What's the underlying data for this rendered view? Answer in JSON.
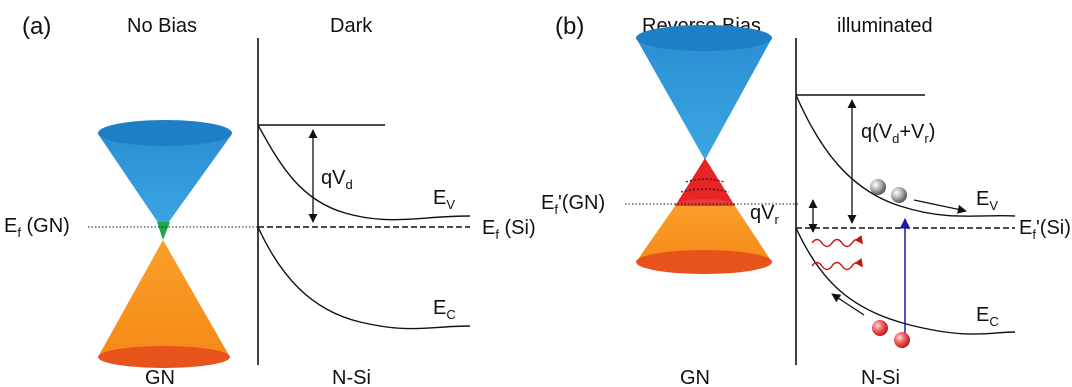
{
  "panel_a": {
    "tag": "(a)",
    "bias": "No Bias",
    "light": "Dark",
    "graphene_label": "GN",
    "silicon_label": "N-Si",
    "ef_gn": {
      "main": "E",
      "sub": "f",
      "tail": " (GN)"
    },
    "ef_si": {
      "main": "E",
      "sub": "f",
      "tail": " (Si)"
    },
    "ev": {
      "main": "E",
      "sub": "V"
    },
    "ec": {
      "main": "E",
      "sub": "C"
    },
    "qvd": {
      "main": "qV",
      "sub": "d"
    }
  },
  "panel_b": {
    "tag": "(b)",
    "bias": "Reverse Bias",
    "light": "illuminated",
    "graphene_label": "GN",
    "silicon_label": "N-Si",
    "ef_gn": {
      "main": "E",
      "sub": "f",
      "tail": "'(GN)"
    },
    "ef_si": {
      "main": "E",
      "sub": "f",
      "tail": "'(Si)"
    },
    "ev": {
      "main": "E",
      "sub": "V"
    },
    "ec": {
      "main": "E",
      "sub": "C"
    },
    "qvr": {
      "main": "qV",
      "sub": "r"
    },
    "qvdvr": {
      "p1": "q(V",
      "s1": "d",
      "p2": "+V",
      "s2": "r",
      "p3": ")"
    }
  },
  "colors": {
    "upper_cone": "#2f97d6",
    "upper_cone_top": "#1f7fc6",
    "lower_cone": "#f7951f",
    "lower_cone_bottom": "#e8531b",
    "fill_green": "#1ea84a",
    "fill_red": "#e82525",
    "photon": "#cc1111",
    "excitation": "#1a1aa8",
    "line": "#111111"
  }
}
